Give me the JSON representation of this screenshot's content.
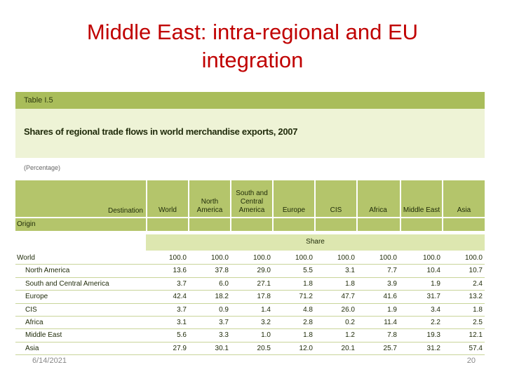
{
  "slide": {
    "title_line1": "Middle East: intra-regional and EU",
    "title_line2": "integration",
    "footer_date": "6/14/2021",
    "page_number": "20"
  },
  "table": {
    "label": "Table I.5",
    "title": "Shares of regional trade flows in world merchandise exports, 2007",
    "unit": "(Percentage)",
    "destination_label": "Destination",
    "origin_label": "Origin",
    "share_label": "Share",
    "columns": [
      "World",
      "North\nAmerica",
      "South and\nCentral\nAmerica",
      "Europe",
      "CIS",
      "Africa",
      "Middle East",
      "Asia"
    ],
    "rows": [
      {
        "label": "World",
        "indent": false,
        "values": [
          "100.0",
          "100.0",
          "100.0",
          "100.0",
          "100.0",
          "100.0",
          "100.0",
          "100.0"
        ]
      },
      {
        "label": "North America",
        "indent": true,
        "values": [
          "13.6",
          "37.8",
          "29.0",
          "5.5",
          "3.1",
          "7.7",
          "10.4",
          "10.7"
        ]
      },
      {
        "label": "South and Central America",
        "indent": true,
        "values": [
          "3.7",
          "6.0",
          "27.1",
          "1.8",
          "1.8",
          "3.9",
          "1.9",
          "2.4"
        ]
      },
      {
        "label": "Europe",
        "indent": true,
        "values": [
          "42.4",
          "18.2",
          "17.8",
          "71.2",
          "47.7",
          "41.6",
          "31.7",
          "13.2"
        ]
      },
      {
        "label": "CIS",
        "indent": true,
        "values": [
          "3.7",
          "0.9",
          "1.4",
          "4.8",
          "26.0",
          "1.9",
          "3.4",
          "1.8"
        ]
      },
      {
        "label": "Africa",
        "indent": true,
        "values": [
          "3.1",
          "3.7",
          "3.2",
          "2.8",
          "0.2",
          "11.4",
          "2.2",
          "2.5"
        ]
      },
      {
        "label": "Middle East",
        "indent": true,
        "values": [
          "5.6",
          "3.3",
          "1.0",
          "1.8",
          "1.2",
          "7.8",
          "19.3",
          "12.1"
        ]
      },
      {
        "label": "Asia",
        "indent": true,
        "values": [
          "27.9",
          "30.1",
          "20.5",
          "12.0",
          "20.1",
          "25.7",
          "31.2",
          "57.4"
        ]
      }
    ]
  }
}
